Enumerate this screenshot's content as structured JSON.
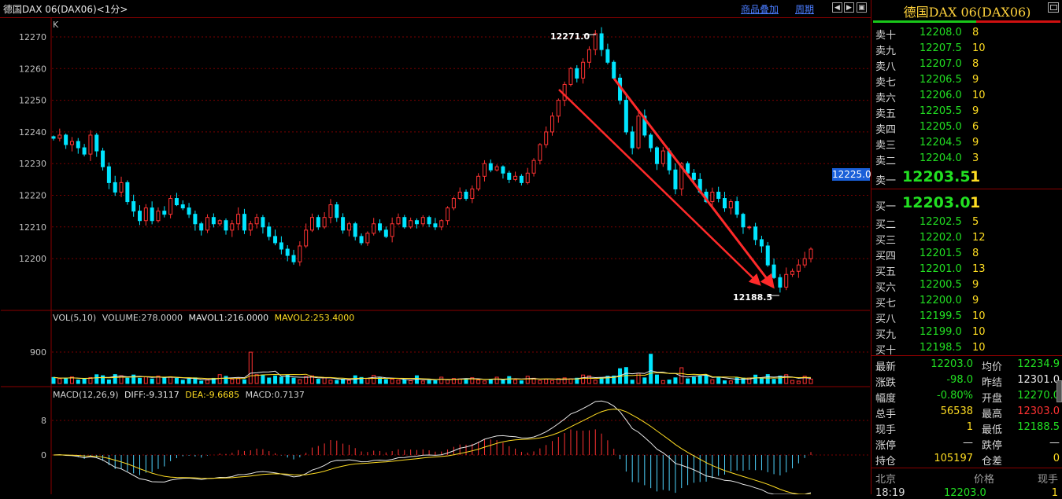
{
  "window": {
    "title": "德国DAX 06(DAX06)<1分>",
    "overlay_link": "商品叠加",
    "period_link": "周期"
  },
  "colors": {
    "up": "#ff3232",
    "down": "#00e5ff",
    "grid": "#8a0000",
    "arrow": "#ff2a2a"
  },
  "panels": {
    "main": {
      "label": "K",
      "high_marker": "12271.0",
      "low_marker": "12188.5",
      "price_tag": "12225.0"
    },
    "volume": {
      "label": "VOL(5,10)",
      "volume_text": "VOLUME:278.0000",
      "mavol1_text": "MAVOL1:216.0000",
      "mavol2_text": "MAVOL2:253.4000",
      "axis_label": "900"
    },
    "macd": {
      "label": "MACD(12,26,9)",
      "diff_text": "DIFF:-9.3117",
      "dea_text": "DEA:-9.6685",
      "macd_text": "MACD:0.7137",
      "axis_labels": [
        "8",
        "0"
      ]
    }
  },
  "chart_data": {
    "type": "candlestick",
    "y_ticks": [
      12270,
      12260,
      12250,
      12240,
      12230,
      12220,
      12210,
      12200
    ],
    "ylim": [
      12184,
      12275
    ],
    "high": 12271.0,
    "low": 12188.5,
    "close_path": [
      12238,
      12239,
      12236,
      12237,
      12235,
      12233,
      12239,
      12234,
      12229,
      12224,
      12221,
      12224,
      12218,
      12215,
      12212,
      12216,
      12212,
      12215,
      12214,
      12219,
      12217,
      12216,
      12214,
      12211,
      12209,
      12213,
      12211,
      12212,
      12209,
      12211,
      12214,
      12209,
      12211,
      12213,
      12210,
      12207,
      12205,
      12203,
      12201,
      12199,
      12204,
      12209,
      12213,
      12210,
      12213,
      12217,
      12213,
      12209,
      12211,
      12207,
      12205,
      12208,
      12211,
      12209,
      12207,
      12211,
      12213,
      12210,
      12212,
      12211,
      12213,
      12211,
      12210,
      12212,
      12216,
      12219,
      12221,
      12219,
      12222,
      12226,
      12230,
      12228,
      12229,
      12227,
      12225,
      12226,
      12224,
      12227,
      12231,
      12236,
      12240,
      12245,
      12250,
      12255,
      12260,
      12257,
      12262,
      12266,
      12271,
      12266,
      12262,
      12257,
      12250,
      12240,
      12235,
      12245,
      12239,
      12235,
      12230,
      12234,
      12228,
      12222,
      12230,
      12227,
      12225,
      12221,
      12218,
      12221,
      12219,
      12216,
      12218,
      12214,
      12210,
      12210,
      12206,
      12204,
      12198,
      12194,
      12191,
      12195,
      12196,
      12198,
      12200,
      12203
    ]
  },
  "orderbook": {
    "asks": [
      {
        "label": "卖十",
        "price": "12208.0",
        "vol": "8"
      },
      {
        "label": "卖九",
        "price": "12207.5",
        "vol": "10"
      },
      {
        "label": "卖八",
        "price": "12207.0",
        "vol": "8"
      },
      {
        "label": "卖七",
        "price": "12206.5",
        "vol": "9"
      },
      {
        "label": "卖六",
        "price": "12206.0",
        "vol": "10"
      },
      {
        "label": "卖五",
        "price": "12205.5",
        "vol": "9"
      },
      {
        "label": "卖四",
        "price": "12205.0",
        "vol": "6"
      },
      {
        "label": "卖三",
        "price": "12204.5",
        "vol": "9"
      },
      {
        "label": "卖二",
        "price": "12204.0",
        "vol": "3"
      },
      {
        "label": "卖一",
        "price": "12203.5",
        "vol": "1"
      }
    ],
    "bids": [
      {
        "label": "买一",
        "price": "12203.0",
        "vol": "1"
      },
      {
        "label": "买二",
        "price": "12202.5",
        "vol": "5"
      },
      {
        "label": "买三",
        "price": "12202.0",
        "vol": "12"
      },
      {
        "label": "买四",
        "price": "12201.5",
        "vol": "8"
      },
      {
        "label": "买五",
        "price": "12201.0",
        "vol": "13"
      },
      {
        "label": "买六",
        "price": "12200.5",
        "vol": "9"
      },
      {
        "label": "买七",
        "price": "12200.0",
        "vol": "9"
      },
      {
        "label": "买八",
        "price": "12199.5",
        "vol": "10"
      },
      {
        "label": "买九",
        "price": "12199.0",
        "vol": "10"
      },
      {
        "label": "买十",
        "price": "12198.5",
        "vol": "10"
      }
    ]
  },
  "stats": [
    {
      "l1": "最新",
      "v1": "12203.0",
      "c1": "g",
      "l2": "均价",
      "v2": "12234.9",
      "c2": "g"
    },
    {
      "l1": "涨跌",
      "v1": "-98.0",
      "c1": "g",
      "l2": "昨结",
      "v2": "12301.0",
      "c2": "w"
    },
    {
      "l1": "幅度",
      "v1": "-0.80%",
      "c1": "g",
      "l2": "开盘",
      "v2": "12270.0",
      "c2": "g"
    },
    {
      "l1": "总手",
      "v1": "56538",
      "c1": "y",
      "l2": "最高",
      "v2": "12303.0",
      "c2": "r"
    },
    {
      "l1": "现手",
      "v1": "1",
      "c1": "y",
      "l2": "最低",
      "v2": "12188.5",
      "c2": "g"
    },
    {
      "l1": "涨停",
      "v1": "—",
      "c1": "w",
      "l2": "跌停",
      "v2": "—",
      "c2": "w"
    },
    {
      "l1": "持仓",
      "v1": "105197",
      "c1": "y",
      "l2": "仓差",
      "v2": "0",
      "c2": "y"
    }
  ],
  "ticks": {
    "head": {
      "place": "北京",
      "price": "价格",
      "vol": "现手"
    },
    "row": {
      "time": "18:19",
      "price": "12203.0",
      "vol": "1"
    }
  },
  "quote_title": "德国DAX  06(DAX06)"
}
